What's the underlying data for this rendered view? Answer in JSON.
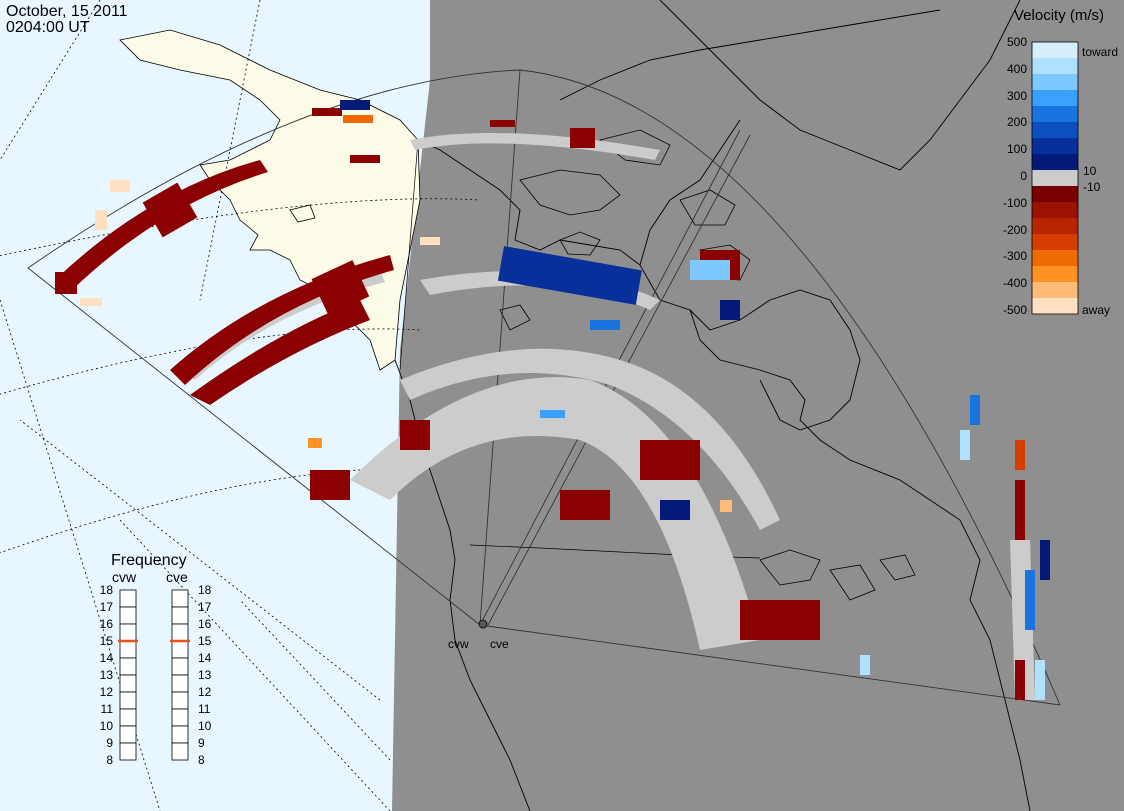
{
  "header": {
    "date": "October, 15 2011",
    "time": "0204:00 UT"
  },
  "colors": {
    "ocean_day": "#e8f6ff",
    "land_day": "#fcfbe8",
    "night": "#8f8f8f",
    "ground_scatter": "#cccccc",
    "coast": "#000000"
  },
  "velocity_legend": {
    "title": "Velocity (m/s)",
    "toward_label": "toward",
    "away_label": "away",
    "ticks": [
      "500",
      "400",
      "300",
      "200",
      "100",
      "10",
      "0",
      "-10",
      "-100",
      "-200",
      "-300",
      "-400",
      "-500"
    ],
    "scale_colors": [
      "#d6efff",
      "#b0e0ff",
      "#7cc8ff",
      "#3aa0ff",
      "#1a74e0",
      "#0b4fc0",
      "#08309a",
      "#041a78",
      "#cccccc",
      "#7a0000",
      "#9a1200",
      "#b82400",
      "#d63e00",
      "#ef6a00",
      "#ff9222",
      "#ffbb77",
      "#ffe0c0"
    ]
  },
  "frequency_panel": {
    "title": "Frequency",
    "radars": [
      {
        "name": "cvw",
        "frequency_mhz": 15
      },
      {
        "name": "cve",
        "frequency_mhz": 15
      }
    ],
    "scale_labels": [
      "18",
      "17",
      "16",
      "15",
      "14",
      "13",
      "12",
      "11",
      "10",
      "9",
      "8"
    ]
  },
  "radar_sites": [
    {
      "name": "cvw"
    },
    {
      "name": "cve"
    }
  ]
}
